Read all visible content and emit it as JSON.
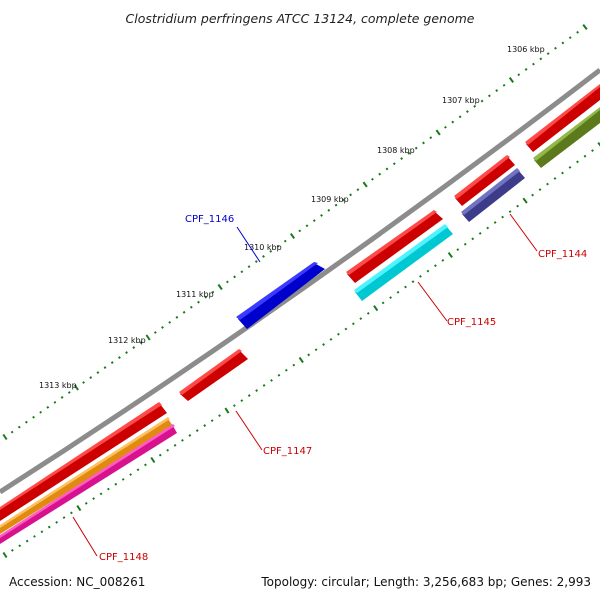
{
  "title": "Clostridium perfringens ATCC 13124, complete genome",
  "footer": {
    "accession": "Accession: NC_008261",
    "topology": "Topology: circular; Length: 3,256,683 bp; Genes: 2,993"
  },
  "colors": {
    "backbone": "#8c8c8c",
    "label_forward": "#0000cc",
    "label_reverse": "#cc0000",
    "tick": "#1a7a1a"
  },
  "kbp_ticks": [
    "1306 kbp",
    "1307 kbp",
    "1308 kbp",
    "1309 kbp",
    "1310 kbp",
    "1311 kbp",
    "1312 kbp",
    "1313 kbp"
  ],
  "genes": [
    {
      "label": "CPF_1144",
      "color": "#ee0000",
      "strand": "reverse"
    },
    {
      "label": "CPF_1145",
      "color": "#ee0000",
      "strand": "reverse"
    },
    {
      "label": "CPF_1146",
      "color": "#0000ee",
      "strand": "forward"
    },
    {
      "label": "CPF_1147",
      "color": "#ee0000",
      "strand": "reverse"
    },
    {
      "label": "CPF_1148",
      "color": "#ee0000",
      "strand": "reverse"
    }
  ],
  "feature_colors": {
    "cds_unlabeled": "#ee0000",
    "trna_cyan": "#00e5ee",
    "slate": "#4b4b9a",
    "olive": "#6b8e23",
    "orange": "#f39a1e",
    "magenta": "#ee1ea0"
  }
}
